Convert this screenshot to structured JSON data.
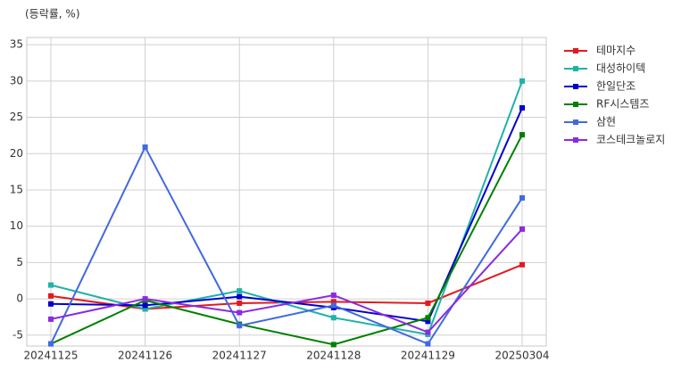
{
  "chart_data": {
    "type": "line",
    "y_label": "(등락률, %)",
    "categories": [
      "20241125",
      "20241126",
      "20241127",
      "20241128",
      "20241129",
      "20250304"
    ],
    "series": [
      {
        "name": "테마지수",
        "color": "#e31a1c",
        "values": [
          0.4,
          -1.4,
          -0.6,
          -0.4,
          -0.6,
          4.7
        ]
      },
      {
        "name": "대성하이텍",
        "color": "#20b2aa",
        "values": [
          1.9,
          -1.4,
          1.1,
          -2.6,
          -4.9,
          30.0
        ]
      },
      {
        "name": "한일단조",
        "color": "#0000cd",
        "values": [
          -0.7,
          -0.9,
          0.3,
          -1.2,
          -3.1,
          26.3
        ]
      },
      {
        "name": "RF시스템즈",
        "color": "#008000",
        "values": [
          -6.2,
          -0.2,
          -3.5,
          -6.3,
          -2.6,
          22.6
        ]
      },
      {
        "name": "삼현",
        "color": "#4169e1",
        "values": [
          -6.2,
          20.9,
          -3.7,
          -0.9,
          -6.2,
          13.9
        ]
      },
      {
        "name": "코스테크놀로지",
        "color": "#8a2be2",
        "values": [
          -2.8,
          0.0,
          -1.9,
          0.5,
          -4.6,
          9.6
        ]
      }
    ],
    "ylim": [
      -6.5,
      36
    ],
    "yticks": [
      -5,
      0,
      5,
      10,
      15,
      20,
      25,
      30,
      35
    ],
    "grid": true
  }
}
